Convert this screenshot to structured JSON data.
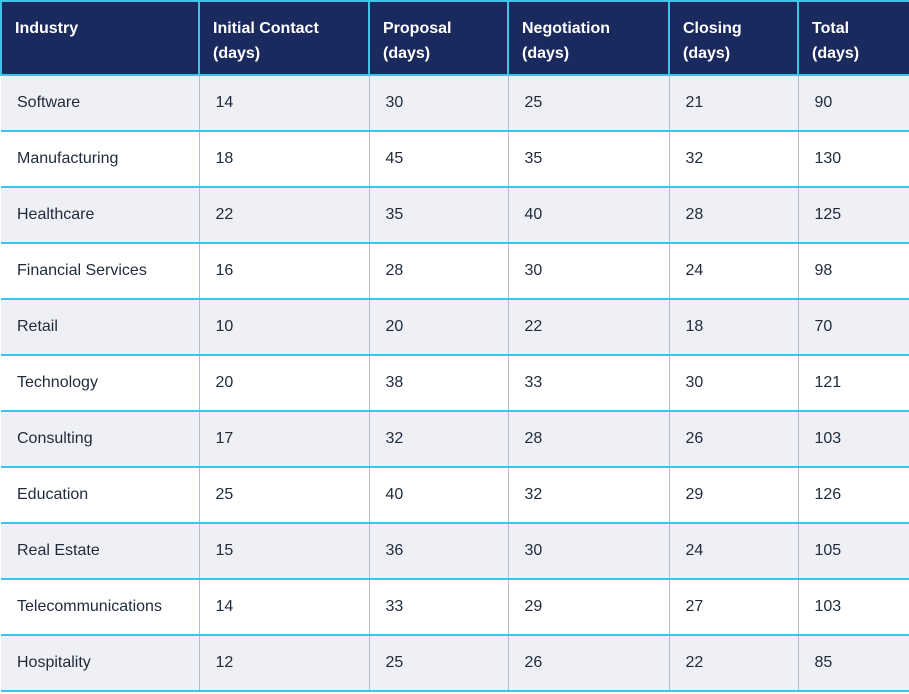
{
  "table": {
    "headers": [
      {
        "line1": "Industry",
        "line2": ""
      },
      {
        "line1": "Initial Contact",
        "line2": "(days)"
      },
      {
        "line1": "Proposal",
        "line2": "(days)"
      },
      {
        "line1": "Negotiation",
        "line2": "(days)"
      },
      {
        "line1": "Closing",
        "line2": "(days)"
      },
      {
        "line1": "Total",
        "line2": "(days)"
      }
    ],
    "rows": [
      [
        "Software",
        "14",
        "30",
        "25",
        "21",
        "90"
      ],
      [
        "Manufacturing",
        "18",
        "45",
        "35",
        "32",
        "130"
      ],
      [
        "Healthcare",
        "22",
        "35",
        "40",
        "28",
        "125"
      ],
      [
        "Financial Services",
        "16",
        "28",
        "30",
        "24",
        "98"
      ],
      [
        "Retail",
        "10",
        "20",
        "22",
        "18",
        "70"
      ],
      [
        "Technology",
        "20",
        "38",
        "33",
        "30",
        "121"
      ],
      [
        "Consulting",
        "17",
        "32",
        "28",
        "26",
        "103"
      ],
      [
        "Education",
        "25",
        "40",
        "32",
        "29",
        "126"
      ],
      [
        "Real Estate",
        "15",
        "36",
        "30",
        "24",
        "105"
      ],
      [
        "Telecommunications",
        "14",
        "33",
        "29",
        "27",
        "103"
      ],
      [
        "Hospitality",
        "12",
        "25",
        "26",
        "22",
        "85"
      ]
    ],
    "colors": {
      "header_bg": "#1b2a5e",
      "header_text": "#ffffff",
      "accent_border": "#3fc3ea",
      "row_alt_bg": "#eef0f5"
    }
  }
}
